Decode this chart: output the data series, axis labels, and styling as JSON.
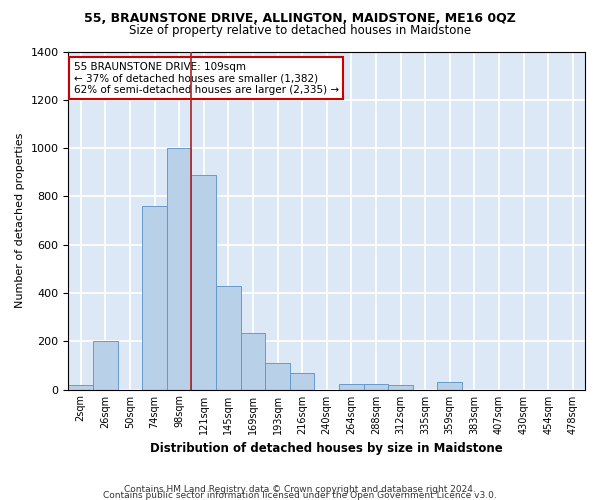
{
  "title": "55, BRAUNSTONE DRIVE, ALLINGTON, MAIDSTONE, ME16 0QZ",
  "subtitle": "Size of property relative to detached houses in Maidstone",
  "xlabel": "Distribution of detached houses by size in Maidstone",
  "ylabel": "Number of detached properties",
  "footnote1": "Contains HM Land Registry data © Crown copyright and database right 2024.",
  "footnote2": "Contains public sector information licensed under the Open Government Licence v3.0.",
  "bar_color": "#b8d0e8",
  "bar_edge_color": "#6699cc",
  "background_color": "#dce8f5",
  "grid_color": "#ffffff",
  "annotation_box_color": "#cc0000",
  "vline_color": "#aa2222",
  "categories": [
    "2sqm",
    "26sqm",
    "50sqm",
    "74sqm",
    "98sqm",
    "121sqm",
    "145sqm",
    "169sqm",
    "193sqm",
    "216sqm",
    "240sqm",
    "264sqm",
    "288sqm",
    "312sqm",
    "335sqm",
    "359sqm",
    "383sqm",
    "407sqm",
    "430sqm",
    "454sqm",
    "478sqm"
  ],
  "values": [
    20,
    200,
    0,
    760,
    1000,
    890,
    430,
    235,
    110,
    70,
    0,
    25,
    25,
    18,
    0,
    30,
    0,
    0,
    0,
    0,
    0
  ],
  "ylim": [
    0,
    1400
  ],
  "yticks": [
    0,
    200,
    400,
    600,
    800,
    1000,
    1200,
    1400
  ],
  "vline_x": 4.5,
  "annotation_text": "55 BRAUNSTONE DRIVE: 109sqm\n← 37% of detached houses are smaller (1,382)\n62% of semi-detached houses are larger (2,335) →"
}
